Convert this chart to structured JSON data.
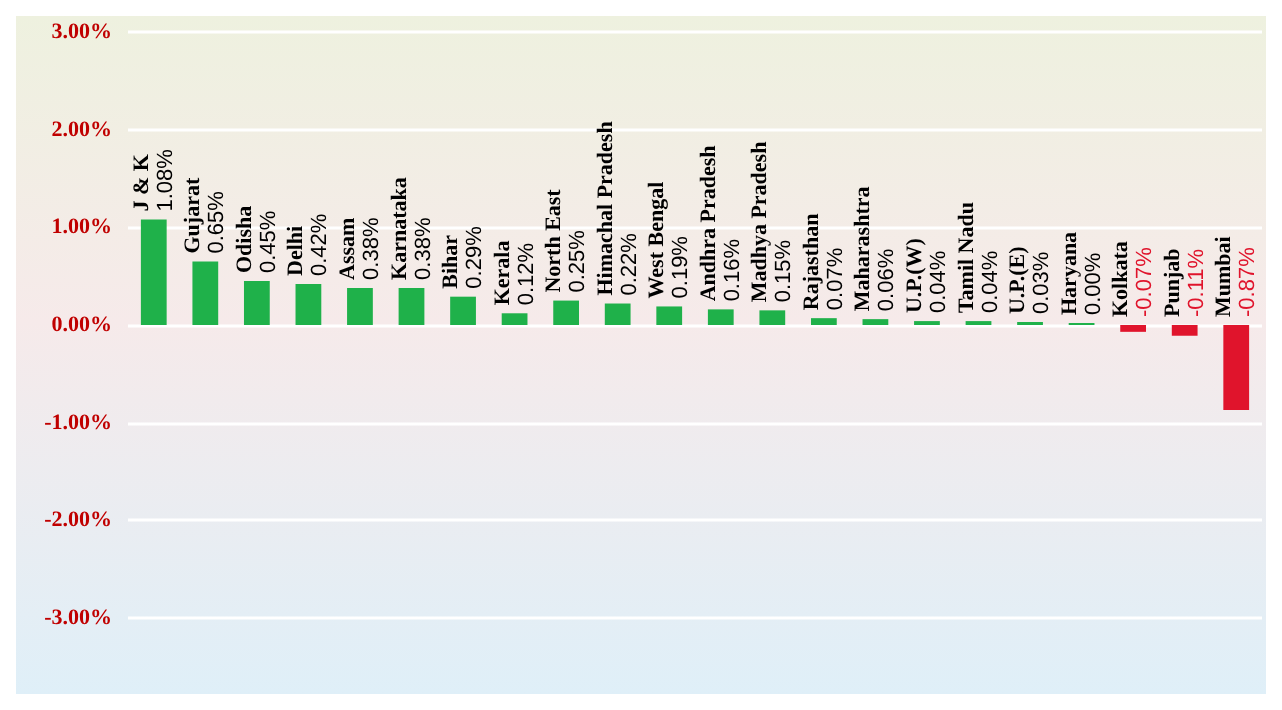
{
  "chart_data": {
    "type": "bar",
    "categories": [
      "J & K",
      "Gujarat",
      "Odisha",
      "Delhi",
      "Assam",
      "Karnataka",
      "Bihar",
      "Kerala",
      "North East",
      "Himachal Pradesh",
      "West Bengal",
      "Andhra Pradesh",
      "Madhya Pradesh",
      "Rajasthan",
      "Maharashtra",
      "U.P.(W)",
      "Tamil Nadu",
      "U.P.(E)",
      "Haryana",
      "Kolkata",
      "Punjab",
      "Mumbai"
    ],
    "values": [
      1.08,
      0.65,
      0.45,
      0.42,
      0.38,
      0.38,
      0.29,
      0.12,
      0.25,
      0.22,
      0.19,
      0.16,
      0.15,
      0.07,
      0.06,
      0.04,
      0.04,
      0.03,
      0.0,
      -0.07,
      -0.11,
      -0.87
    ],
    "value_labels": [
      "1.08%",
      "0.65%",
      "0.45%",
      "0.42%",
      "0.38%",
      "0.38%",
      "0.29%",
      "0.12%",
      "0.25%",
      "0.22%",
      "0.19%",
      "0.16%",
      "0.15%",
      "0.07%",
      "0.06%",
      "0.04%",
      "0.04%",
      "0.03%",
      "0.00%",
      "-0.07%",
      "-0.11%",
      "-0.87%"
    ],
    "colors": [
      "#1fb14a",
      "#1fb14a",
      "#1fb14a",
      "#1fb14a",
      "#1fb14a",
      "#1fb14a",
      "#1fb14a",
      "#1fb14a",
      "#1fb14a",
      "#1fb14a",
      "#1fb14a",
      "#1fb14a",
      "#1fb14a",
      "#1fb14a",
      "#1fb14a",
      "#1fb14a",
      "#1fb14a",
      "#1fb14a",
      "#1fb14a",
      "#e0142c",
      "#e0142c",
      "#e0142c"
    ],
    "ylim": [
      -3,
      3
    ],
    "yticks": [
      {
        "value": -3,
        "label": "-3.00%"
      },
      {
        "value": -2,
        "label": "-2.00%"
      },
      {
        "value": -1,
        "label": "-1.00%"
      },
      {
        "value": 0,
        "label": "0.00%"
      },
      {
        "value": 1,
        "label": "1.00%"
      },
      {
        "value": 2,
        "label": "2.00%"
      },
      {
        "value": 3,
        "label": "3.00%"
      }
    ],
    "grid": "y"
  }
}
